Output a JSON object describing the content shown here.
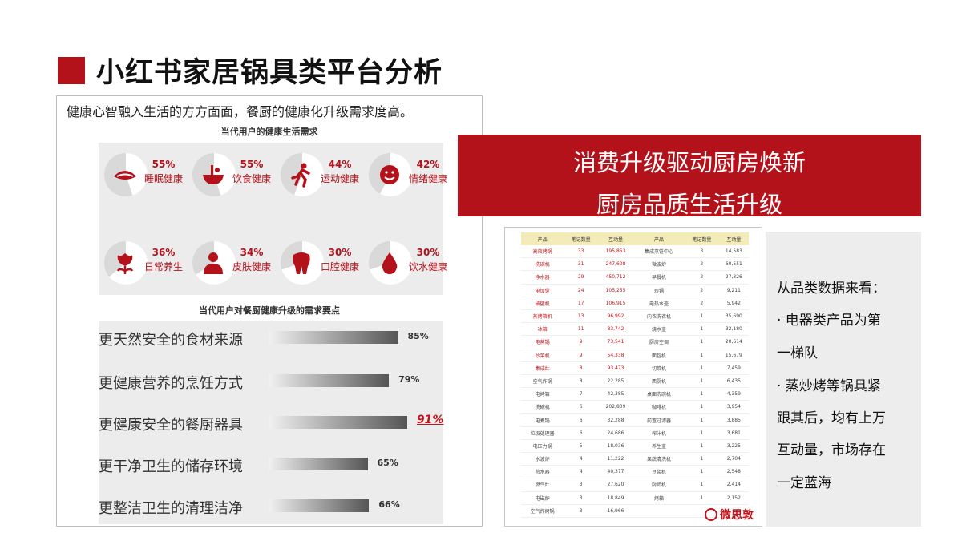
{
  "title": "小红书家居锅具类平台分析",
  "left_panel": {
    "subhead": "健康心智融入生活的方方面面，餐厨的健康化升级需求度高。",
    "section1_title": "当代用户的健康生活需求",
    "section2_title": "当代用户对餐厨健康升级的需求要点"
  },
  "banner": {
    "line1": "消费升级驱动厨房焕新",
    "line2": "厨房品质生活升级"
  },
  "note": {
    "lines": [
      "从品类数据来看：",
      "· 电器类产品为第",
      "一梯队",
      "· 蒸炒烤等锅具紧",
      "跟其后，均有上万",
      "互动量，市场存在",
      "一定蓝海"
    ]
  },
  "logo_text": "微思敦",
  "colors": {
    "accent": "#b3121b",
    "panel_bg": "#ececec"
  },
  "chart_data": [
    {
      "type": "pie",
      "title": "当代用户的健康生活需求",
      "categories": [
        "睡眠健康",
        "饮食健康",
        "运动健康",
        "情绪健康",
        "日常养生",
        "皮肤健康",
        "口腔健康",
        "饮水健康"
      ],
      "values": [
        55,
        55,
        44,
        42,
        36,
        34,
        30,
        30
      ],
      "value_labels": [
        "55%",
        "55%",
        "44%",
        "42%",
        "36%",
        "34%",
        "30%",
        "30%"
      ],
      "icons": [
        "mouth-icon",
        "bowl-icon",
        "runner-icon",
        "smile-icon",
        "flower-icon",
        "person-icon",
        "tooth-icon",
        "drop-icon"
      ]
    },
    {
      "type": "bar",
      "title": "当代用户对餐厨健康升级的需求要点",
      "categories": [
        "更天然安全的食材来源",
        "更健康营养的烹饪方式",
        "更健康安全的餐厨器具",
        "更干净卫生的储存环境",
        "更整洁卫生的清理洁净"
      ],
      "values": [
        85,
        79,
        91,
        65,
        66
      ],
      "value_labels": [
        "85%",
        "79%",
        "91%",
        "65%",
        "66%"
      ],
      "highlight_index": 2
    },
    {
      "type": "table",
      "columns": [
        "产品",
        "笔记数量",
        "互动量",
        "产品",
        "笔记数量",
        "互动量"
      ],
      "rows": [
        [
          "高效烤锅",
          "33",
          "195,853",
          "集成烹饪中心",
          "3",
          "14,583"
        ],
        [
          "洗碗机",
          "31",
          "247,608",
          "微波炉",
          "2",
          "60,551"
        ],
        [
          "净水器",
          "29",
          "450,712",
          "早餐机",
          "2",
          "27,326"
        ],
        [
          "电饭煲",
          "24",
          "105,255",
          "炒锅",
          "2",
          "9,211"
        ],
        [
          "破壁机",
          "17",
          "106,915",
          "电热水壶",
          "2",
          "5,942"
        ],
        [
          "蒸烤箱机",
          "13",
          "96,992",
          "内衣洗衣机",
          "1",
          "35,690"
        ],
        [
          "冰箱",
          "11",
          "83,742",
          "烧水壶",
          "1",
          "32,180"
        ],
        [
          "电蒸锅",
          "9",
          "73,541",
          "厨房空调",
          "1",
          "20,614"
        ],
        [
          "炒菜机",
          "9",
          "54,338",
          "面包机",
          "1",
          "15,679"
        ],
        [
          "集成灶",
          "8",
          "93,473",
          "切菜机",
          "1",
          "7,459"
        ],
        [
          "空气炸锅",
          "8",
          "22,285",
          "西厨机",
          "1",
          "6,435"
        ],
        [
          "电烤箱",
          "7",
          "42,385",
          "桌面洗碗机",
          "1",
          "4,359"
        ],
        [
          "洗碗机",
          "6",
          "202,809",
          "咖啡机",
          "1",
          "3,954"
        ],
        [
          "电煮锅",
          "6",
          "32,288",
          "前置过滤器",
          "1",
          "3,885"
        ],
        [
          "垃圾处理器",
          "6",
          "24,686",
          "榨汁机",
          "1",
          "3,681"
        ],
        [
          "电压力锅",
          "5",
          "18,036",
          "养生壶",
          "1",
          "3,225"
        ],
        [
          "水波炉",
          "4",
          "11,222",
          "果蔬清洗机",
          "1",
          "2,704"
        ],
        [
          "热水器",
          "4",
          "40,377",
          "豆浆机",
          "1",
          "2,548"
        ],
        [
          "燃气灶",
          "3",
          "27,620",
          "厨师机",
          "1",
          "2,414"
        ],
        [
          "电磁炉",
          "3",
          "18,849",
          "烤箱",
          "1",
          "2,152"
        ],
        [
          "空气炸烤锅",
          "3",
          "16,966",
          "",
          "",
          ""
        ]
      ],
      "red_rows_first_col": 10
    }
  ]
}
